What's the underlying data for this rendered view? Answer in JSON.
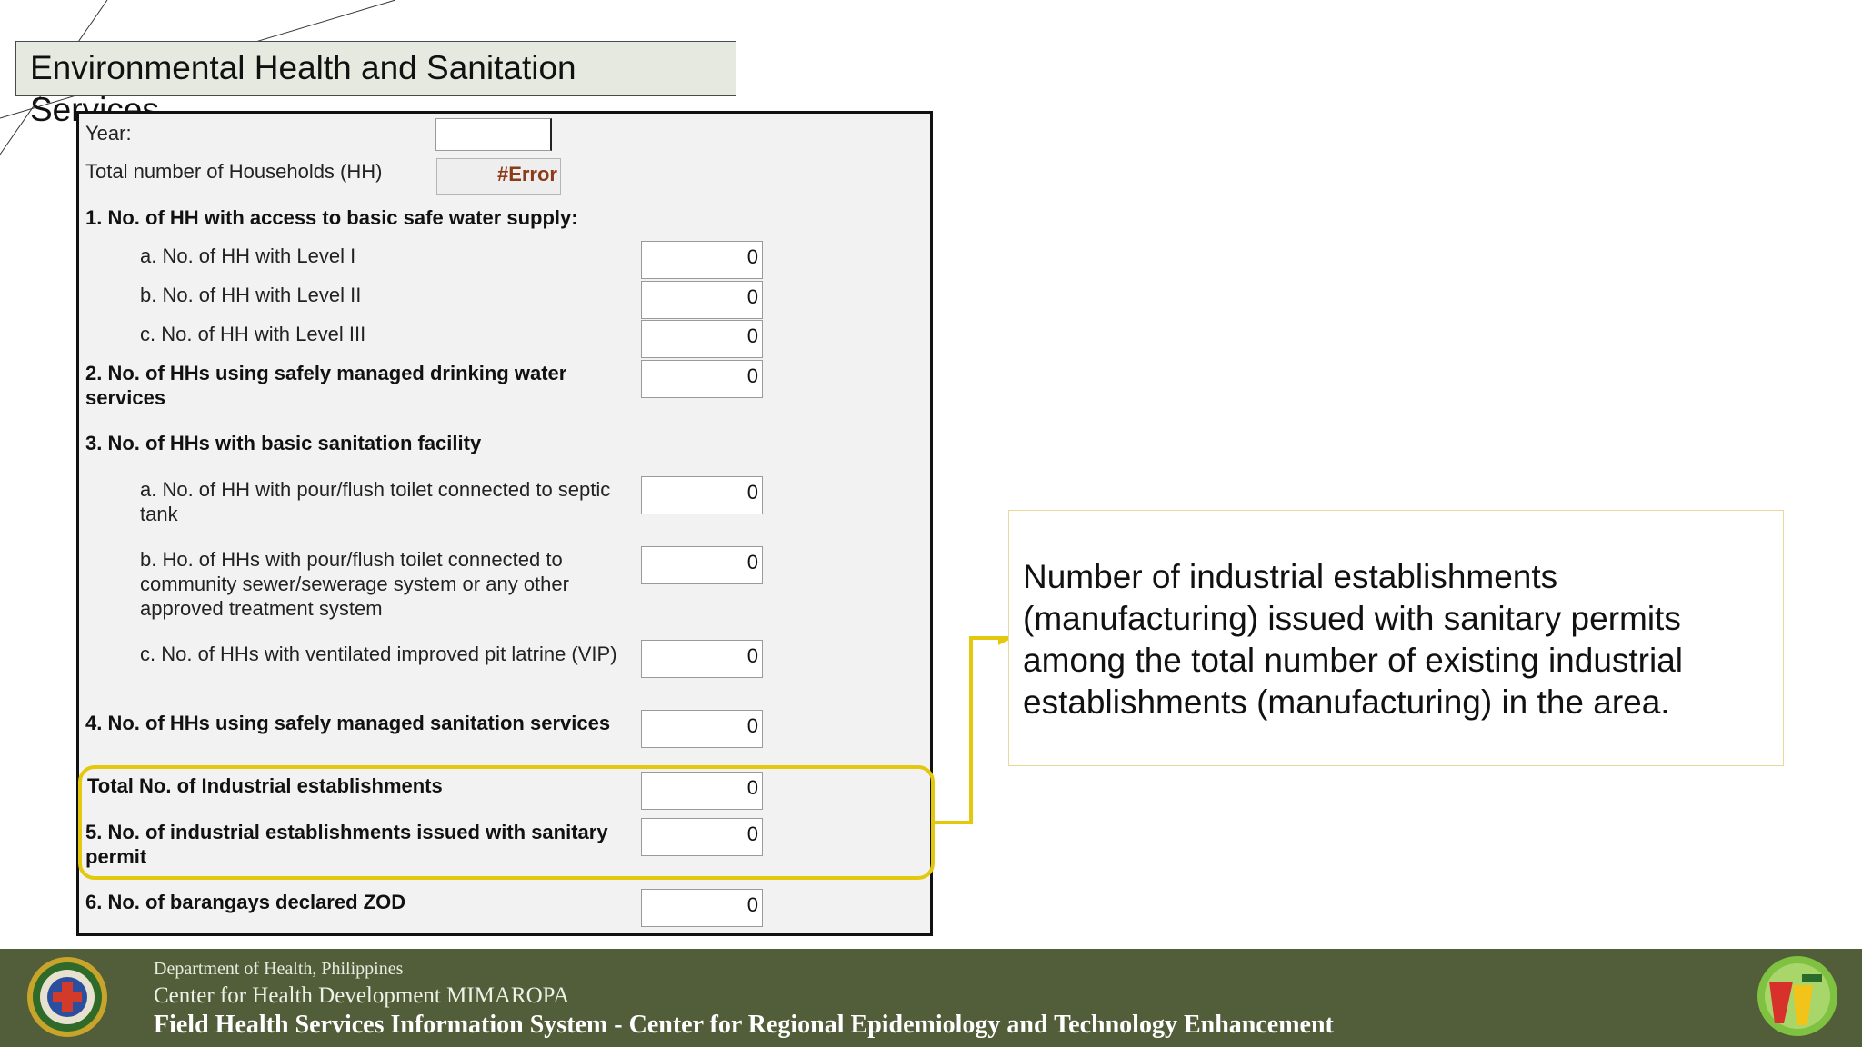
{
  "slide": {
    "title": "Environmental Health and Sanitation Services"
  },
  "form": {
    "year_label": "Year:",
    "year_value": "",
    "hh_label": "Total number of Households (HH)",
    "hh_value": "#Error",
    "q1_label": "1. No. of HH with access to basic safe water supply:",
    "q1a_label": "a. No. of HH with Level I",
    "q1a_value": "0",
    "q1b_label": "b. No. of HH with Level II",
    "q1b_value": "0",
    "q1c_label": "c. No. of HH with Level III",
    "q1c_value": "0",
    "q2_label": "2. No. of HHs using safely managed drinking water services",
    "q2_value": "0",
    "q3_label": "3. No. of HHs with basic sanitation facility",
    "q3a_label": "a. No. of HH with pour/flush toilet connected to septic tank",
    "q3a_value": "0",
    "q3b_label": "b. Ho. of HHs with pour/flush toilet connected to community sewer/sewerage system or any other approved treatment system",
    "q3b_value": "0",
    "q3c_label": "c. No. of HHs with ventilated improved pit latrine (VIP)",
    "q3c_value": "0",
    "q4_label": "4. No. of HHs using safely managed sanitation services",
    "q4_value": "0",
    "ind_label": "Total No. of Industrial establishments",
    "ind_value": "0",
    "q5_label": "5. No. of industrial establishments issued with sanitary permit",
    "q5_value": "0",
    "q6_label": "6. No. of barangays declared ZOD",
    "q6_value": "0"
  },
  "callout": {
    "text": "Number of industrial establishments (manufacturing) issued with sanitary permits among the total number of existing industrial establishments (manufacturing) in the area."
  },
  "footer": {
    "line1": "Department of Health, Philippines",
    "line2": "Center for Health Development MIMAROPA",
    "line3": "Field Health Services Information System - Center for Regional Epidemiology and Technology Enhancement"
  },
  "colors": {
    "highlight": "#e3c80e",
    "footer_bg": "#525e3a",
    "title_bg": "#e6e9df",
    "error_text": "#8b3a1a"
  },
  "icons": {
    "seal": "doh-seal-icon",
    "logo": "chd-logo-icon"
  }
}
